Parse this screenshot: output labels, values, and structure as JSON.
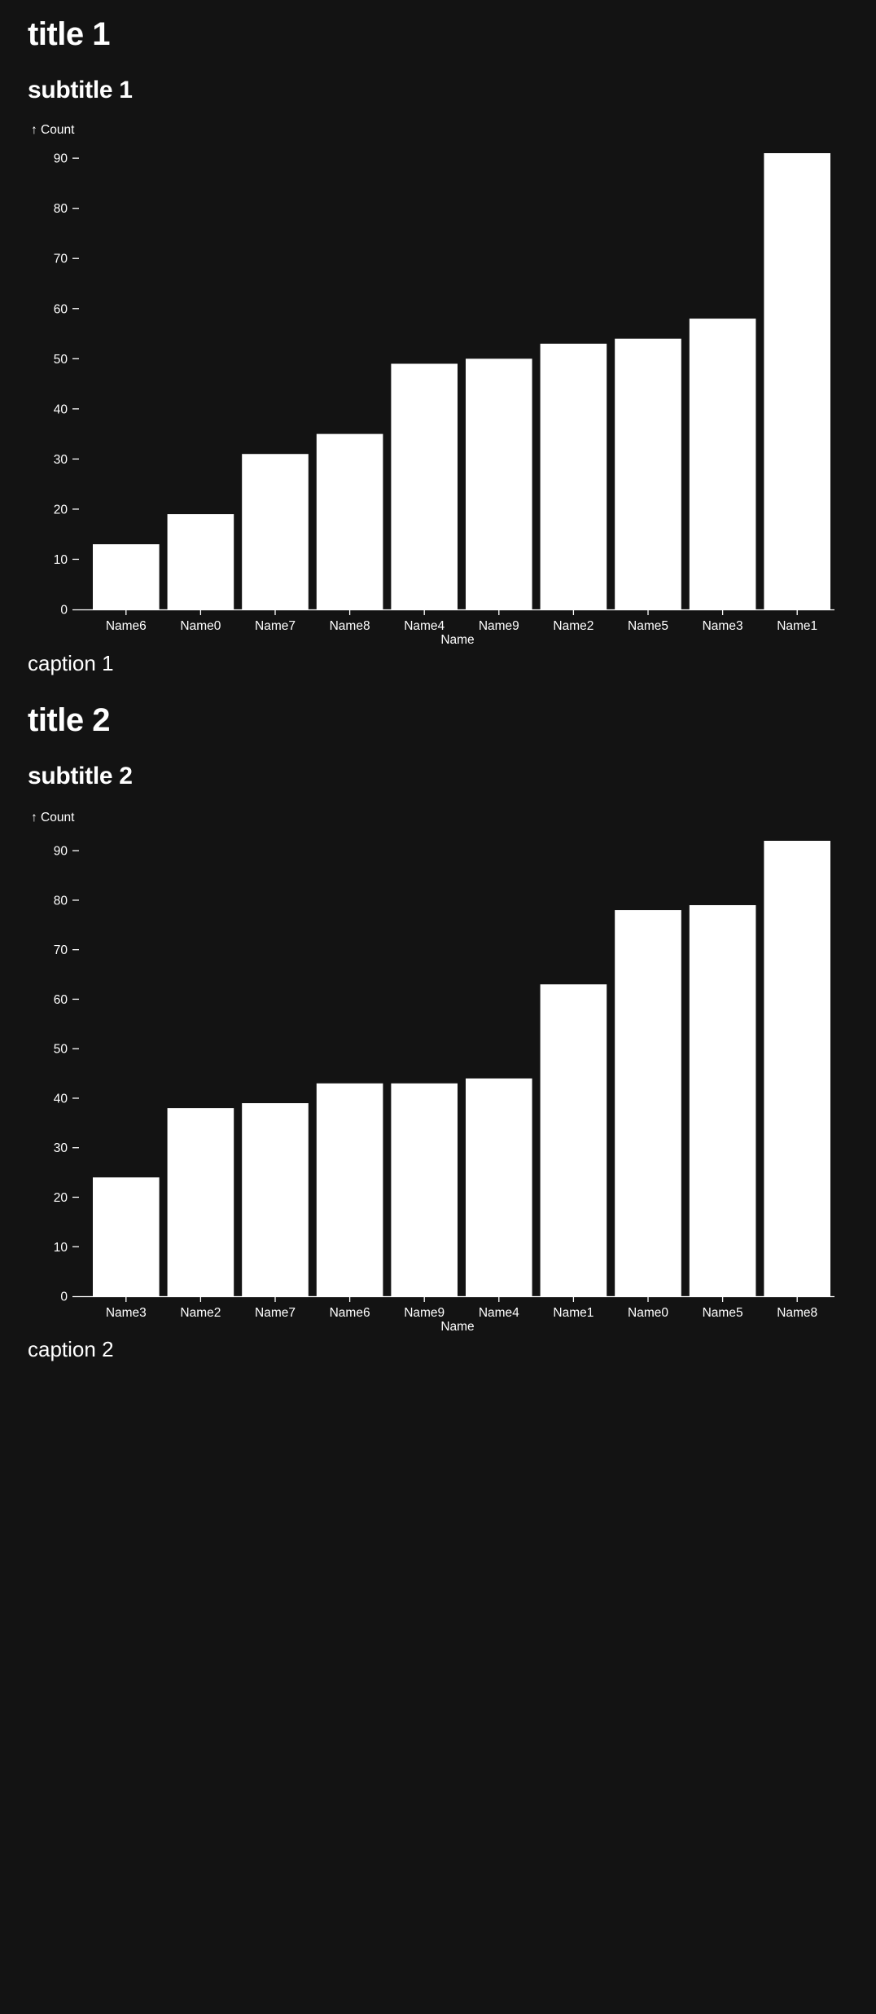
{
  "charts": [
    {
      "title": "title 1",
      "subtitle": "subtitle 1",
      "caption": "caption 1"
    },
    {
      "title": "title 2",
      "subtitle": "subtitle 2",
      "caption": "caption 2"
    }
  ],
  "colors": {
    "background": "#131313",
    "bar": "#ffffff",
    "text": "#ffffff"
  },
  "chart_data": [
    {
      "type": "bar",
      "title": "title 1",
      "subtitle": "subtitle 1",
      "caption": "caption 1",
      "xlabel": "Name",
      "ylabel": "↑ Count",
      "categories": [
        "Name6",
        "Name0",
        "Name7",
        "Name8",
        "Name4",
        "Name9",
        "Name2",
        "Name5",
        "Name3",
        "Name1"
      ],
      "values": [
        13,
        19,
        31,
        35,
        49,
        50,
        53,
        54,
        58,
        91
      ],
      "yticks": [
        0,
        10,
        20,
        30,
        40,
        50,
        60,
        70,
        80,
        90
      ],
      "ylim": [
        0,
        91
      ],
      "grid": false,
      "legend": "none"
    },
    {
      "type": "bar",
      "title": "title 2",
      "subtitle": "subtitle 2",
      "caption": "caption 2",
      "xlabel": "Name",
      "ylabel": "↑ Count",
      "categories": [
        "Name3",
        "Name2",
        "Name7",
        "Name6",
        "Name9",
        "Name4",
        "Name1",
        "Name0",
        "Name5",
        "Name8"
      ],
      "values": [
        24,
        38,
        39,
        43,
        43,
        44,
        63,
        78,
        79,
        92
      ],
      "yticks": [
        0,
        10,
        20,
        30,
        40,
        50,
        60,
        70,
        80,
        90
      ],
      "ylim": [
        0,
        92
      ],
      "grid": false,
      "legend": "none"
    }
  ]
}
